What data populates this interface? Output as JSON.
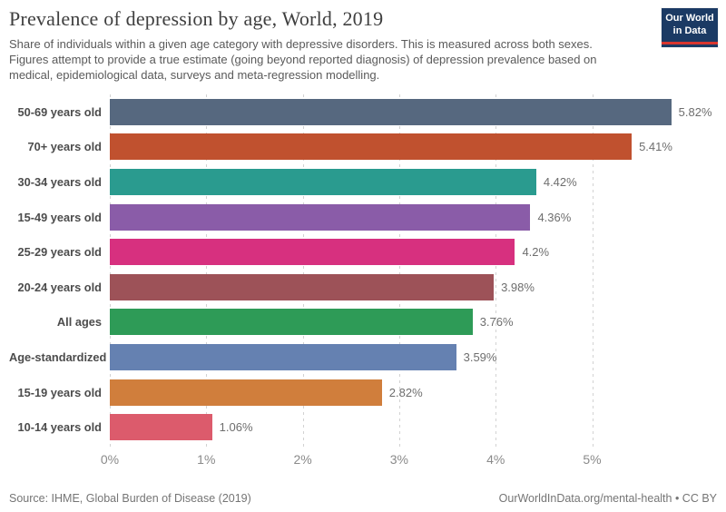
{
  "header": {
    "title": "Prevalence of depression by age, World, 2019",
    "subtitle": "Share of individuals within a given age category with depressive disorders. This is measured across both sexes. Figures attempt to provide a true estimate (going beyond reported diagnosis) of depression prevalence based on medical, epidemiological data, surveys and meta-regression modelling.",
    "logo": {
      "line1": "Our World",
      "line2": "in Data",
      "bg_color": "#1B3A64",
      "stripe_color": "#D8352E"
    }
  },
  "chart_data": {
    "type": "bar",
    "orientation": "horizontal",
    "title": "Prevalence of depression by age, World, 2019",
    "xlabel": "",
    "ylabel": "",
    "categories": [
      "50-69 years old",
      "70+ years old",
      "30-34 years old",
      "15-49 years old",
      "25-29 years old",
      "20-24 years old",
      "All ages",
      "Age-standardized",
      "15-19 years old",
      "10-14 years old"
    ],
    "values": [
      5.82,
      5.41,
      4.42,
      4.36,
      4.2,
      3.98,
      3.76,
      3.59,
      2.82,
      1.06
    ],
    "value_labels": [
      "5.82%",
      "5.41%",
      "4.42%",
      "4.36%",
      "4.2%",
      "3.98%",
      "3.76%",
      "3.59%",
      "2.82%",
      "1.06%"
    ],
    "bar_colors": [
      "#56687F",
      "#C0512F",
      "#2A9B8F",
      "#8A5CA8",
      "#D7307F",
      "#9D5258",
      "#2E9B57",
      "#6581B1",
      "#D07E3C",
      "#DC5B6C"
    ],
    "x_ticks": [
      "0%",
      "1%",
      "2%",
      "3%",
      "4%",
      "5%"
    ],
    "x_tick_values": [
      0,
      1,
      2,
      3,
      4,
      5
    ],
    "xlim": [
      0,
      6.2
    ],
    "grid": "dashed-vertical",
    "legend_position": "none",
    "unit": "%"
  },
  "footer": {
    "source": "Source: IHME, Global Burden of Disease (2019)",
    "right_text": "OurWorldInData.org/mental-health • CC BY",
    "link": "OurWorldInData.org/mental-health",
    "license": "CC BY"
  }
}
